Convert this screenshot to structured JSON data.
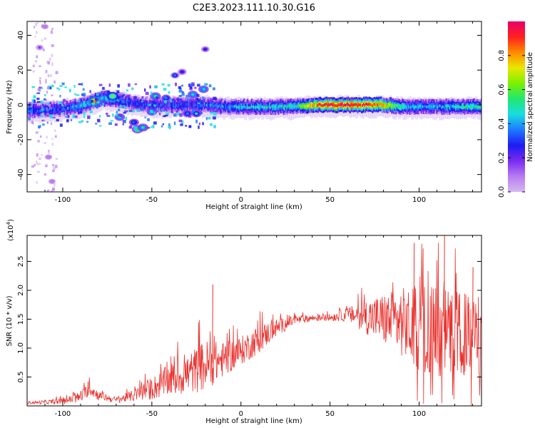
{
  "title": "C2E3.2023.111.10.30.G16",
  "colors": {
    "snr_line": "#e8322e",
    "colormap": [
      "#d4b8f0",
      "#b77cf2",
      "#7a2bf0",
      "#1c1cf2",
      "#1f78ff",
      "#19dde0",
      "#20e870",
      "#7cf000",
      "#e8e800",
      "#ff8a00",
      "#ff2020",
      "#e8006a"
    ]
  },
  "chart_data": [
    {
      "type": "heatmap",
      "xlabel": "Height of straight line (km)",
      "ylabel": "Frequency (Hz)",
      "xlim": [
        -120,
        135
      ],
      "ylim": [
        -50,
        48
      ],
      "xticks": [
        -100,
        -50,
        0,
        50,
        100
      ],
      "yticks": [
        -40,
        -20,
        0,
        20,
        40
      ],
      "colorbar": {
        "label": "Normalized spectral amplitude",
        "range": [
          0,
          1
        ],
        "ticks": [
          0.0,
          0.2,
          0.4,
          0.6,
          0.8
        ]
      },
      "ridge": [
        {
          "x": -118,
          "f": -3,
          "a": 0.35
        },
        {
          "x": -110,
          "f": -3,
          "a": 0.3
        },
        {
          "x": -100,
          "f": -2,
          "a": 0.32
        },
        {
          "x": -92,
          "f": -1,
          "a": 0.4
        },
        {
          "x": -85,
          "f": 1,
          "a": 0.5
        },
        {
          "x": -78,
          "f": 4,
          "a": 0.45
        },
        {
          "x": -70,
          "f": 3,
          "a": 0.38
        },
        {
          "x": -60,
          "f": 1,
          "a": 0.3
        },
        {
          "x": -50,
          "f": 0,
          "a": 0.3
        },
        {
          "x": -40,
          "f": 0,
          "a": 0.32
        },
        {
          "x": -30,
          "f": 0,
          "a": 0.3
        },
        {
          "x": -20,
          "f": 0,
          "a": 0.35
        },
        {
          "x": -10,
          "f": -1,
          "a": 0.35
        },
        {
          "x": 0,
          "f": -1,
          "a": 0.45
        },
        {
          "x": 10,
          "f": -1,
          "a": 0.45
        },
        {
          "x": 20,
          "f": -1,
          "a": 0.45
        },
        {
          "x": 30,
          "f": -1,
          "a": 0.5
        },
        {
          "x": 40,
          "f": 0,
          "a": 0.8
        },
        {
          "x": 50,
          "f": 0,
          "a": 0.95
        },
        {
          "x": 60,
          "f": 0,
          "a": 0.95
        },
        {
          "x": 70,
          "f": 0,
          "a": 0.92
        },
        {
          "x": 80,
          "f": 0,
          "a": 0.8
        },
        {
          "x": 90,
          "f": -1,
          "a": 0.5
        },
        {
          "x": 100,
          "f": -1,
          "a": 0.4
        },
        {
          "x": 110,
          "f": -1,
          "a": 0.4
        },
        {
          "x": 120,
          "f": -1,
          "a": 0.45
        },
        {
          "x": 130,
          "f": -1,
          "a": 0.5
        }
      ],
      "features": [
        {
          "x": -82,
          "f": 2,
          "a": 0.82
        },
        {
          "x": -72,
          "f": 5,
          "a": 0.6
        },
        {
          "x": -68,
          "f": -7,
          "a": 0.45
        },
        {
          "x": -60,
          "f": -10,
          "a": 0.4
        },
        {
          "x": -58,
          "f": -14,
          "a": 0.55
        },
        {
          "x": -55,
          "f": -13,
          "a": 0.5
        },
        {
          "x": -50,
          "f": -4,
          "a": 0.45
        },
        {
          "x": -48,
          "f": 5,
          "a": 0.5
        },
        {
          "x": -42,
          "f": 4,
          "a": 0.35
        },
        {
          "x": -37,
          "f": 17,
          "a": 0.32
        },
        {
          "x": -33,
          "f": 19,
          "a": 0.3
        },
        {
          "x": -30,
          "f": -5,
          "a": 0.4
        },
        {
          "x": -27,
          "f": 6,
          "a": 0.45
        },
        {
          "x": -25,
          "f": -5,
          "a": 0.42
        },
        {
          "x": -21,
          "f": 9,
          "a": 0.45
        },
        {
          "x": -20,
          "f": 32,
          "a": 0.25
        },
        {
          "x": -113,
          "f": 33,
          "a": 0.15
        },
        {
          "x": -110,
          "f": 45,
          "a": 0.12
        },
        {
          "x": -108,
          "f": -30,
          "a": 0.12
        },
        {
          "x": -106,
          "f": -44,
          "a": 0.1
        }
      ]
    },
    {
      "type": "line",
      "xlabel": "Height of straight line (km)",
      "ylabel": "SNR (10 * v/v)",
      "yscale_label": "(x10",
      "yscale_exponent": "4",
      "xlim": [
        -120,
        135
      ],
      "ylim": [
        0,
        2.95
      ],
      "xticks": [
        -100,
        -50,
        0,
        50,
        100
      ],
      "yticks": [
        0.5,
        1.0,
        1.5,
        2.0,
        2.5
      ],
      "envelope": [
        {
          "x": -120,
          "mean": 0.05,
          "amp": 0.02
        },
        {
          "x": -100,
          "mean": 0.08,
          "amp": 0.05
        },
        {
          "x": -90,
          "mean": 0.15,
          "amp": 0.1
        },
        {
          "x": -85,
          "mean": 0.3,
          "amp": 0.12
        },
        {
          "x": -80,
          "mean": 0.18,
          "amp": 0.08
        },
        {
          "x": -70,
          "mean": 0.1,
          "amp": 0.05
        },
        {
          "x": -60,
          "mean": 0.18,
          "amp": 0.1
        },
        {
          "x": -50,
          "mean": 0.3,
          "amp": 0.2
        },
        {
          "x": -40,
          "mean": 0.45,
          "amp": 0.28
        },
        {
          "x": -30,
          "mean": 0.55,
          "amp": 0.35
        },
        {
          "x": -20,
          "mean": 0.7,
          "amp": 0.45
        },
        {
          "x": -10,
          "mean": 0.8,
          "amp": 0.3
        },
        {
          "x": 0,
          "mean": 0.95,
          "amp": 0.25
        },
        {
          "x": 10,
          "mean": 1.15,
          "amp": 0.25
        },
        {
          "x": 20,
          "mean": 1.35,
          "amp": 0.15
        },
        {
          "x": 30,
          "mean": 1.48,
          "amp": 0.08
        },
        {
          "x": 40,
          "mean": 1.52,
          "amp": 0.06
        },
        {
          "x": 50,
          "mean": 1.53,
          "amp": 0.06
        },
        {
          "x": 60,
          "mean": 1.58,
          "amp": 0.12
        },
        {
          "x": 70,
          "mean": 1.55,
          "amp": 0.3
        },
        {
          "x": 80,
          "mean": 1.5,
          "amp": 0.45
        },
        {
          "x": 90,
          "mean": 1.45,
          "amp": 0.6
        },
        {
          "x": 100,
          "mean": 1.35,
          "amp": 0.75
        },
        {
          "x": 110,
          "mean": 1.3,
          "amp": 0.8
        },
        {
          "x": 120,
          "mean": 1.25,
          "amp": 0.75
        },
        {
          "x": 135,
          "mean": 1.2,
          "amp": 0.7
        }
      ],
      "peaks": [
        {
          "x": -86,
          "y": 0.42
        },
        {
          "x": -22,
          "y": 1.05
        },
        {
          "x": -16,
          "y": 2.1
        },
        {
          "x": 97,
          "y": 2.82
        },
        {
          "x": 114,
          "y": 2.95
        },
        {
          "x": 130,
          "y": 2.4
        }
      ]
    }
  ]
}
